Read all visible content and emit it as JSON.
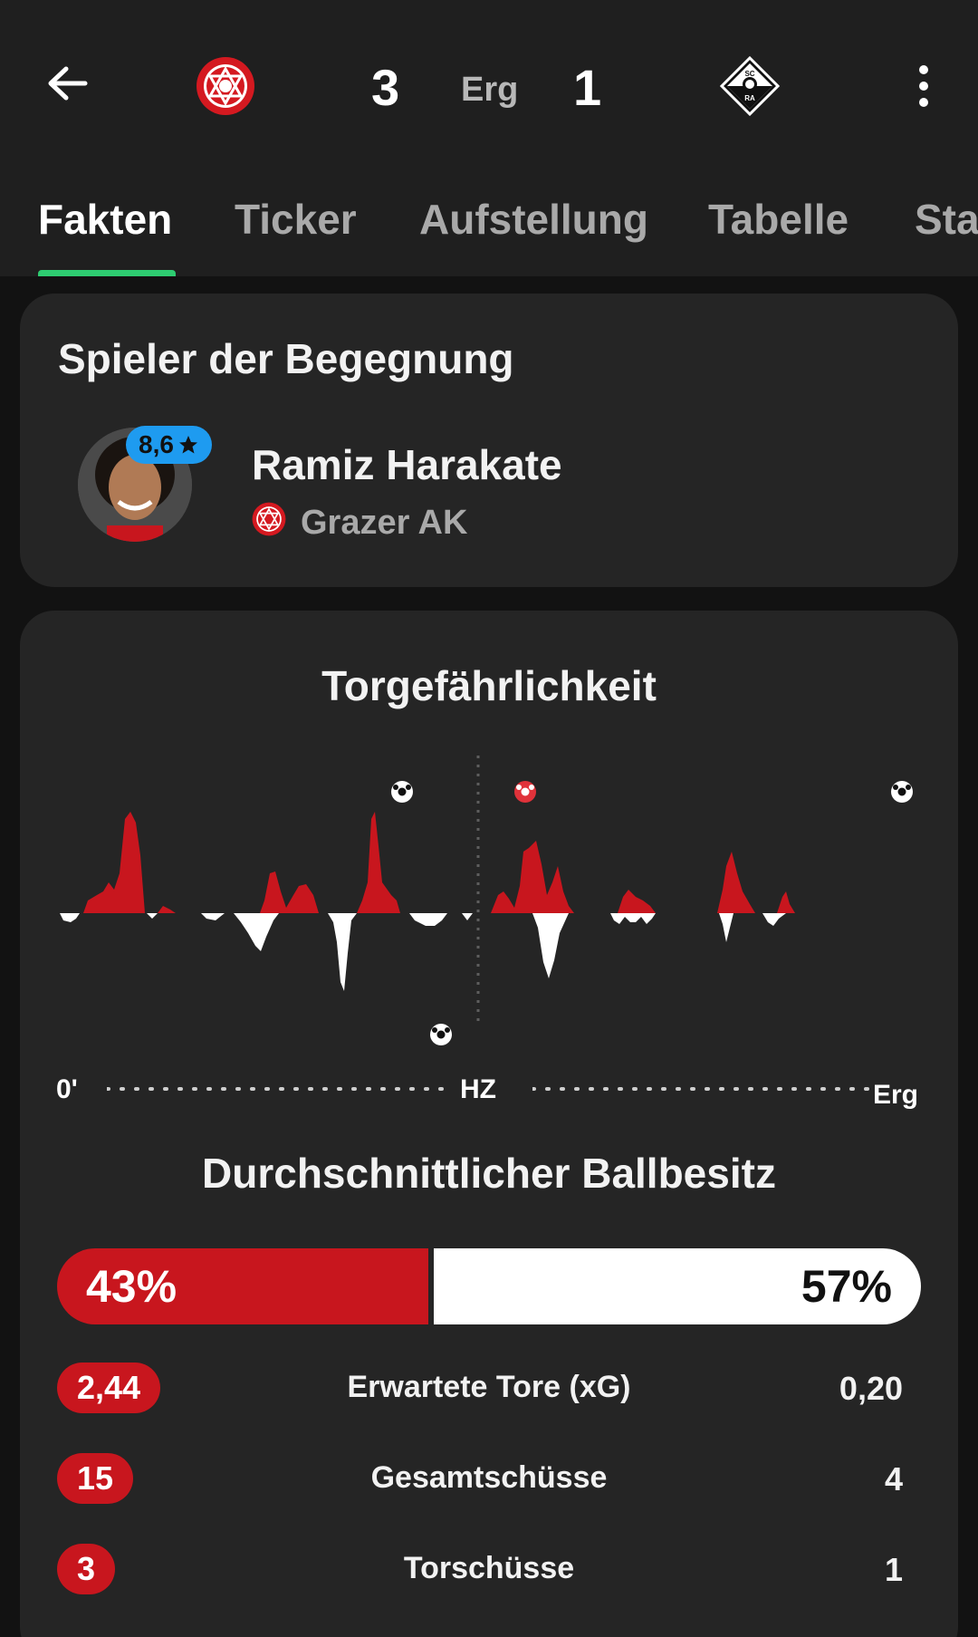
{
  "header": {
    "home_score": "3",
    "status": "Erg",
    "away_score": "1",
    "home_team_icon": "grazer-ak-crest-icon",
    "away_team_icon": "sc-ra-crest-icon"
  },
  "tabs": [
    {
      "label": "Fakten",
      "active": true
    },
    {
      "label": "Ticker",
      "active": false
    },
    {
      "label": "Aufstellung",
      "active": false
    },
    {
      "label": "Tabelle",
      "active": false
    },
    {
      "label": "Sta",
      "active": false
    }
  ],
  "player_of_match": {
    "title": "Spieler der Begegnung",
    "rating": "8,6",
    "name": "Ramiz Harakate",
    "team": "Grazer AK"
  },
  "momentum": {
    "title": "Torgefährlichkeit",
    "axis_start": "0'",
    "axis_mid": "HZ",
    "axis_end": "Erg",
    "colors": {
      "home": "#c8161e",
      "away": "#ffffff"
    }
  },
  "possession": {
    "title": "Durchschnittlicher Ballbesitz",
    "home_value": 43,
    "away_value": 57,
    "home_label": "43%",
    "away_label": "57%"
  },
  "stats": [
    {
      "label": "Erwartete Tore (xG)",
      "home": "2,44",
      "away": "0,20"
    },
    {
      "label": "Gesamtschüsse",
      "home": "15",
      "away": "4"
    },
    {
      "label": "Torschüsse",
      "home": "3",
      "away": "1"
    }
  ]
}
